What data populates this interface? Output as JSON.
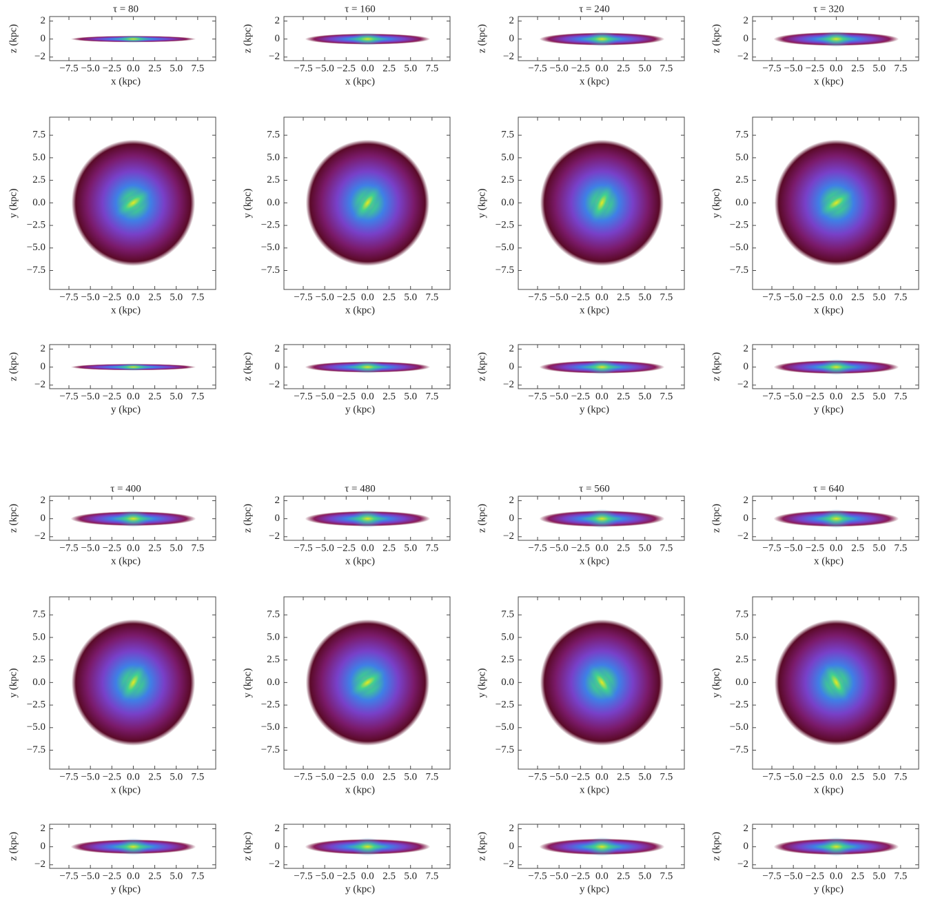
{
  "chart_data": [
    {
      "type": "density",
      "title": "τ = 80",
      "xlabel": "x  (kpc)",
      "ylabel": "z  (kpc)",
      "xlim": [
        -9.75,
        9.6
      ],
      "ylim": [
        -2.4,
        2.5
      ],
      "xticks": [
        {
          "value": -7.5,
          "label": "−7.5"
        },
        {
          "value": -5,
          "label": "−5.0"
        },
        {
          "value": -2.5,
          "label": "−2.5"
        },
        {
          "value": 0,
          "label": "0.0"
        },
        2.5,
        {
          "value": 5,
          "label": "5.0"
        },
        7.5
      ],
      "yticks": [
        {
          "value": -2,
          "label": "−2"
        },
        0,
        2
      ]
    },
    {
      "type": "density",
      "xlabel": "x  (kpc)",
      "ylabel": "y  (kpc)",
      "xlim": [
        -9.75,
        9.6
      ],
      "ylim": [
        -9.6,
        9.5
      ],
      "xticks": [
        {
          "value": -7.5,
          "label": "−7.5"
        },
        {
          "value": -5,
          "label": "−5.0"
        },
        {
          "value": -2.5,
          "label": "−2.5"
        },
        {
          "value": 0,
          "label": "0.0"
        },
        2.5,
        {
          "value": 5,
          "label": "5.0"
        },
        7.5
      ],
      "yticks": [
        {
          "value": -7.5,
          "label": "−7.5"
        },
        {
          "value": -5,
          "label": "−5.0"
        },
        {
          "value": -2.5,
          "label": "−2.5"
        },
        {
          "value": 0,
          "label": "0.0"
        },
        2.5,
        {
          "value": 5,
          "label": "5.0"
        },
        7.5
      ]
    },
    {
      "type": "density",
      "xlabel": "y  (kpc)",
      "ylabel": "z  (kpc)",
      "xlim": [
        -9.75,
        9.6
      ],
      "ylim": [
        -2.4,
        2.5
      ],
      "xticks": [
        {
          "value": -7.5,
          "label": "−7.5"
        },
        {
          "value": -5,
          "label": "−5.0"
        },
        {
          "value": -2.5,
          "label": "−2.5"
        },
        {
          "value": 0,
          "label": "0.0"
        },
        2.5,
        {
          "value": 5,
          "label": "5.0"
        },
        7.5
      ],
      "yticks": [
        {
          "value": -2,
          "label": "−2"
        },
        0,
        2
      ]
    },
    {
      "type": "density",
      "title": "τ = 160",
      "xlabel": "x  (kpc)",
      "ylabel": "z  (kpc)",
      "xlim": [
        -9.75,
        9.6
      ],
      "ylim": [
        -2.4,
        2.5
      ],
      "xticks": [
        {
          "value": -7.5,
          "label": "−7.5"
        },
        {
          "value": -5,
          "label": "−5.0"
        },
        {
          "value": -2.5,
          "label": "−2.5"
        },
        {
          "value": 0,
          "label": "0.0"
        },
        2.5,
        {
          "value": 5,
          "label": "5.0"
        },
        7.5
      ],
      "yticks": [
        {
          "value": -2,
          "label": "−2"
        },
        0,
        2
      ]
    },
    {
      "type": "density",
      "xlabel": "x  (kpc)",
      "ylabel": "y  (kpc)",
      "xlim": [
        -9.75,
        9.6
      ],
      "ylim": [
        -9.6,
        9.5
      ],
      "xticks": [
        {
          "value": -7.5,
          "label": "−7.5"
        },
        {
          "value": -5,
          "label": "−5.0"
        },
        {
          "value": -2.5,
          "label": "−2.5"
        },
        {
          "value": 0,
          "label": "0.0"
        },
        2.5,
        {
          "value": 5,
          "label": "5.0"
        },
        7.5
      ],
      "yticks": [
        {
          "value": -7.5,
          "label": "−7.5"
        },
        {
          "value": -5,
          "label": "−5.0"
        },
        {
          "value": -2.5,
          "label": "−2.5"
        },
        {
          "value": 0,
          "label": "0.0"
        },
        2.5,
        {
          "value": 5,
          "label": "5.0"
        },
        7.5
      ]
    },
    {
      "type": "density",
      "xlabel": "y  (kpc)",
      "ylabel": "z  (kpc)",
      "xlim": [
        -9.75,
        9.6
      ],
      "ylim": [
        -2.4,
        2.5
      ],
      "xticks": [
        {
          "value": -7.5,
          "label": "−7.5"
        },
        {
          "value": -5,
          "label": "−5.0"
        },
        {
          "value": -2.5,
          "label": "−2.5"
        },
        {
          "value": 0,
          "label": "0.0"
        },
        2.5,
        {
          "value": 5,
          "label": "5.0"
        },
        7.5
      ],
      "yticks": [
        {
          "value": -2,
          "label": "−2"
        },
        0,
        2
      ]
    },
    {
      "type": "density",
      "title": "τ = 240",
      "xlabel": "x  (kpc)",
      "ylabel": "z  (kpc)",
      "xlim": [
        -9.75,
        9.6
      ],
      "ylim": [
        -2.4,
        2.5
      ],
      "xticks": [
        {
          "value": -7.5,
          "label": "−7.5"
        },
        {
          "value": -5,
          "label": "−5.0"
        },
        {
          "value": -2.5,
          "label": "−2.5"
        },
        {
          "value": 0,
          "label": "0.0"
        },
        2.5,
        {
          "value": 5,
          "label": "5.0"
        },
        7.5
      ],
      "yticks": [
        {
          "value": -2,
          "label": "−2"
        },
        0,
        2
      ]
    },
    {
      "type": "density",
      "xlabel": "x  (kpc)",
      "ylabel": "y  (kpc)",
      "xlim": [
        -9.75,
        9.6
      ],
      "ylim": [
        -9.6,
        9.5
      ],
      "xticks": [
        {
          "value": -7.5,
          "label": "−7.5"
        },
        {
          "value": -5,
          "label": "−5.0"
        },
        {
          "value": -2.5,
          "label": "−2.5"
        },
        {
          "value": 0,
          "label": "0.0"
        },
        2.5,
        {
          "value": 5,
          "label": "5.0"
        },
        7.5
      ],
      "yticks": [
        {
          "value": -7.5,
          "label": "−7.5"
        },
        {
          "value": -5,
          "label": "−5.0"
        },
        {
          "value": -2.5,
          "label": "−2.5"
        },
        {
          "value": 0,
          "label": "0.0"
        },
        2.5,
        {
          "value": 5,
          "label": "5.0"
        },
        7.5
      ]
    },
    {
      "type": "density",
      "xlabel": "y  (kpc)",
      "ylabel": "z  (kpc)",
      "xlim": [
        -9.75,
        9.6
      ],
      "ylim": [
        -2.4,
        2.5
      ],
      "xticks": [
        {
          "value": -7.5,
          "label": "−7.5"
        },
        {
          "value": -5,
          "label": "−5.0"
        },
        {
          "value": -2.5,
          "label": "−2.5"
        },
        {
          "value": 0,
          "label": "0.0"
        },
        2.5,
        {
          "value": 5,
          "label": "5.0"
        },
        7.5
      ],
      "yticks": [
        {
          "value": -2,
          "label": "−2"
        },
        0,
        2
      ]
    },
    {
      "type": "density",
      "title": "τ = 320",
      "xlabel": "x  (kpc)",
      "ylabel": "z  (kpc)",
      "xlim": [
        -9.75,
        9.6
      ],
      "ylim": [
        -2.4,
        2.5
      ],
      "xticks": [
        {
          "value": -7.5,
          "label": "−7.5"
        },
        {
          "value": -5,
          "label": "−5.0"
        },
        {
          "value": -2.5,
          "label": "−2.5"
        },
        {
          "value": 0,
          "label": "0.0"
        },
        2.5,
        {
          "value": 5,
          "label": "5.0"
        },
        7.5
      ],
      "yticks": [
        {
          "value": -2,
          "label": "−2"
        },
        0,
        2
      ]
    },
    {
      "type": "density",
      "xlabel": "x  (kpc)",
      "ylabel": "y  (kpc)",
      "xlim": [
        -9.75,
        9.6
      ],
      "ylim": [
        -9.6,
        9.5
      ],
      "xticks": [
        {
          "value": -7.5,
          "label": "−7.5"
        },
        {
          "value": -5,
          "label": "−5.0"
        },
        {
          "value": -2.5,
          "label": "−2.5"
        },
        {
          "value": 0,
          "label": "0.0"
        },
        2.5,
        {
          "value": 5,
          "label": "5.0"
        },
        7.5
      ],
      "yticks": [
        {
          "value": -7.5,
          "label": "−7.5"
        },
        {
          "value": -5,
          "label": "−5.0"
        },
        {
          "value": -2.5,
          "label": "−2.5"
        },
        {
          "value": 0,
          "label": "0.0"
        },
        2.5,
        {
          "value": 5,
          "label": "5.0"
        },
        7.5
      ]
    },
    {
      "type": "density",
      "xlabel": "y  (kpc)",
      "ylabel": "z  (kpc)",
      "xlim": [
        -9.75,
        9.6
      ],
      "ylim": [
        -2.4,
        2.5
      ],
      "xticks": [
        {
          "value": -7.5,
          "label": "−7.5"
        },
        {
          "value": -5,
          "label": "−5.0"
        },
        {
          "value": -2.5,
          "label": "−2.5"
        },
        {
          "value": 0,
          "label": "0.0"
        },
        2.5,
        {
          "value": 5,
          "label": "5.0"
        },
        7.5
      ],
      "yticks": [
        {
          "value": -2,
          "label": "−2"
        },
        0,
        2
      ]
    },
    {
      "type": "density",
      "title": "τ = 400",
      "xlabel": "x  (kpc)",
      "ylabel": "z  (kpc)",
      "xlim": [
        -9.75,
        9.6
      ],
      "ylim": [
        -2.4,
        2.5
      ],
      "xticks": [
        {
          "value": -7.5,
          "label": "−7.5"
        },
        {
          "value": -5,
          "label": "−5.0"
        },
        {
          "value": -2.5,
          "label": "−2.5"
        },
        {
          "value": 0,
          "label": "0.0"
        },
        2.5,
        {
          "value": 5,
          "label": "5.0"
        },
        7.5
      ],
      "yticks": [
        {
          "value": -2,
          "label": "−2"
        },
        0,
        2
      ]
    },
    {
      "type": "density",
      "xlabel": "x  (kpc)",
      "ylabel": "y  (kpc)",
      "xlim": [
        -9.75,
        9.6
      ],
      "ylim": [
        -9.6,
        9.5
      ],
      "xticks": [
        {
          "value": -7.5,
          "label": "−7.5"
        },
        {
          "value": -5,
          "label": "−5.0"
        },
        {
          "value": -2.5,
          "label": "−2.5"
        },
        {
          "value": 0,
          "label": "0.0"
        },
        2.5,
        {
          "value": 5,
          "label": "5.0"
        },
        7.5
      ],
      "yticks": [
        {
          "value": -7.5,
          "label": "−7.5"
        },
        {
          "value": -5,
          "label": "−5.0"
        },
        {
          "value": -2.5,
          "label": "−2.5"
        },
        {
          "value": 0,
          "label": "0.0"
        },
        2.5,
        {
          "value": 5,
          "label": "5.0"
        },
        7.5
      ]
    },
    {
      "type": "density",
      "xlabel": "y  (kpc)",
      "ylabel": "z  (kpc)",
      "xlim": [
        -9.75,
        9.6
      ],
      "ylim": [
        -2.4,
        2.5
      ],
      "xticks": [
        {
          "value": -7.5,
          "label": "−7.5"
        },
        {
          "value": -5,
          "label": "−5.0"
        },
        {
          "value": -2.5,
          "label": "−2.5"
        },
        {
          "value": 0,
          "label": "0.0"
        },
        2.5,
        {
          "value": 5,
          "label": "5.0"
        },
        7.5
      ],
      "yticks": [
        {
          "value": -2,
          "label": "−2"
        },
        0,
        2
      ]
    },
    {
      "type": "density",
      "title": "τ = 480",
      "xlabel": "x  (kpc)",
      "ylabel": "z  (kpc)",
      "xlim": [
        -9.75,
        9.6
      ],
      "ylim": [
        -2.4,
        2.5
      ],
      "xticks": [
        {
          "value": -7.5,
          "label": "−7.5"
        },
        {
          "value": -5,
          "label": "−5.0"
        },
        {
          "value": -2.5,
          "label": "−2.5"
        },
        {
          "value": 0,
          "label": "0.0"
        },
        2.5,
        {
          "value": 5,
          "label": "5.0"
        },
        7.5
      ],
      "yticks": [
        {
          "value": -2,
          "label": "−2"
        },
        0,
        2
      ]
    },
    {
      "type": "density",
      "xlabel": "x  (kpc)",
      "ylabel": "y  (kpc)",
      "xlim": [
        -9.75,
        9.6
      ],
      "ylim": [
        -9.6,
        9.5
      ],
      "xticks": [
        {
          "value": -7.5,
          "label": "−7.5"
        },
        {
          "value": -5,
          "label": "−5.0"
        },
        {
          "value": -2.5,
          "label": "−2.5"
        },
        {
          "value": 0,
          "label": "0.0"
        },
        2.5,
        {
          "value": 5,
          "label": "5.0"
        },
        7.5
      ],
      "yticks": [
        {
          "value": -7.5,
          "label": "−7.5"
        },
        {
          "value": -5,
          "label": "−5.0"
        },
        {
          "value": -2.5,
          "label": "−2.5"
        },
        {
          "value": 0,
          "label": "0.0"
        },
        2.5,
        {
          "value": 5,
          "label": "5.0"
        },
        7.5
      ]
    },
    {
      "type": "density",
      "xlabel": "y  (kpc)",
      "ylabel": "z  (kpc)",
      "xlim": [
        -9.75,
        9.6
      ],
      "ylim": [
        -2.4,
        2.5
      ],
      "xticks": [
        {
          "value": -7.5,
          "label": "−7.5"
        },
        {
          "value": -5,
          "label": "−5.0"
        },
        {
          "value": -2.5,
          "label": "−2.5"
        },
        {
          "value": 0,
          "label": "0.0"
        },
        2.5,
        {
          "value": 5,
          "label": "5.0"
        },
        7.5
      ],
      "yticks": [
        {
          "value": -2,
          "label": "−2"
        },
        0,
        2
      ]
    },
    {
      "type": "density",
      "title": "τ = 560",
      "xlabel": "x  (kpc)",
      "ylabel": "z  (kpc)",
      "xlim": [
        -9.75,
        9.6
      ],
      "ylim": [
        -2.4,
        2.5
      ],
      "xticks": [
        {
          "value": -7.5,
          "label": "−7.5"
        },
        {
          "value": -5,
          "label": "−5.0"
        },
        {
          "value": -2.5,
          "label": "−2.5"
        },
        {
          "value": 0,
          "label": "0.0"
        },
        2.5,
        {
          "value": 5,
          "label": "5.0"
        },
        7.5
      ],
      "yticks": [
        {
          "value": -2,
          "label": "−2"
        },
        0,
        2
      ]
    },
    {
      "type": "density",
      "xlabel": "x  (kpc)",
      "ylabel": "y  (kpc)",
      "xlim": [
        -9.75,
        9.6
      ],
      "ylim": [
        -9.6,
        9.5
      ],
      "xticks": [
        {
          "value": -7.5,
          "label": "−7.5"
        },
        {
          "value": -5,
          "label": "−5.0"
        },
        {
          "value": -2.5,
          "label": "−2.5"
        },
        {
          "value": 0,
          "label": "0.0"
        },
        2.5,
        {
          "value": 5,
          "label": "5.0"
        },
        7.5
      ],
      "yticks": [
        {
          "value": -7.5,
          "label": "−7.5"
        },
        {
          "value": -5,
          "label": "−5.0"
        },
        {
          "value": -2.5,
          "label": "−2.5"
        },
        {
          "value": 0,
          "label": "0.0"
        },
        2.5,
        {
          "value": 5,
          "label": "5.0"
        },
        7.5
      ]
    },
    {
      "type": "density",
      "xlabel": "y  (kpc)",
      "ylabel": "z  (kpc)",
      "xlim": [
        -9.75,
        9.6
      ],
      "ylim": [
        -2.4,
        2.5
      ],
      "xticks": [
        {
          "value": -7.5,
          "label": "−7.5"
        },
        {
          "value": -5,
          "label": "−5.0"
        },
        {
          "value": -2.5,
          "label": "−2.5"
        },
        {
          "value": 0,
          "label": "0.0"
        },
        2.5,
        {
          "value": 5,
          "label": "5.0"
        },
        7.5
      ],
      "yticks": [
        {
          "value": -2,
          "label": "−2"
        },
        0,
        2
      ]
    },
    {
      "type": "density",
      "title": "τ = 640",
      "xlabel": "x  (kpc)",
      "ylabel": "z  (kpc)",
      "xlim": [
        -9.75,
        9.6
      ],
      "ylim": [
        -2.4,
        2.5
      ],
      "xticks": [
        {
          "value": -7.5,
          "label": "−7.5"
        },
        {
          "value": -5,
          "label": "−5.0"
        },
        {
          "value": -2.5,
          "label": "−2.5"
        },
        {
          "value": 0,
          "label": "0.0"
        },
        2.5,
        {
          "value": 5,
          "label": "5.0"
        },
        7.5
      ],
      "yticks": [
        {
          "value": -2,
          "label": "−2"
        },
        0,
        2
      ]
    },
    {
      "type": "density",
      "xlabel": "x  (kpc)",
      "ylabel": "y  (kpc)",
      "xlim": [
        -9.75,
        9.6
      ],
      "ylim": [
        -9.6,
        9.5
      ],
      "xticks": [
        {
          "value": -7.5,
          "label": "−7.5"
        },
        {
          "value": -5,
          "label": "−5.0"
        },
        {
          "value": -2.5,
          "label": "−2.5"
        },
        {
          "value": 0,
          "label": "0.0"
        },
        2.5,
        {
          "value": 5,
          "label": "5.0"
        },
        7.5
      ],
      "yticks": [
        {
          "value": -7.5,
          "label": "−7.5"
        },
        {
          "value": -5,
          "label": "−5.0"
        },
        {
          "value": -2.5,
          "label": "−2.5"
        },
        {
          "value": 0,
          "label": "0.0"
        },
        2.5,
        {
          "value": 5,
          "label": "5.0"
        },
        7.5
      ]
    },
    {
      "type": "density",
      "xlabel": "y  (kpc)",
      "ylabel": "z  (kpc)",
      "xlim": [
        -9.75,
        9.6
      ],
      "ylim": [
        -2.4,
        2.5
      ],
      "xticks": [
        {
          "value": -7.5,
          "label": "−7.5"
        },
        {
          "value": -5,
          "label": "−5.0"
        },
        {
          "value": -2.5,
          "label": "−2.5"
        },
        {
          "value": 0,
          "label": "0.0"
        },
        2.5,
        {
          "value": 5,
          "label": "5.0"
        },
        7.5
      ],
      "yticks": [
        {
          "value": -2,
          "label": "−2"
        },
        0,
        2
      ]
    }
  ]
}
